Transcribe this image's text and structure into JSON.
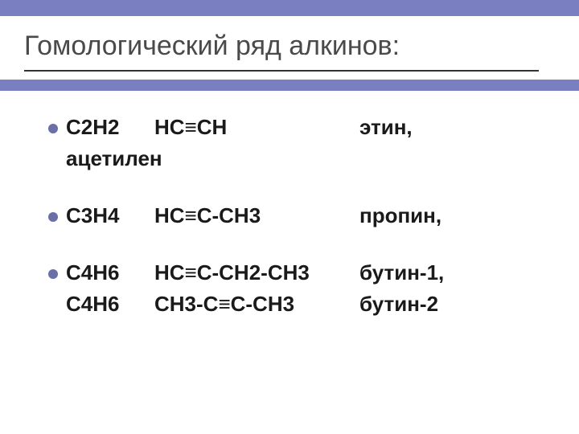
{
  "colors": {
    "header_band": "#7a7fc2",
    "title_text": "#4a4a4a",
    "bullet": "#6b6fa8",
    "body_text": "#1a1a1a",
    "underline": "#333333",
    "background": "#ffffff"
  },
  "title": "Гомологический ряд алкинов:",
  "rows": [
    {
      "formula": "С2Н2",
      "structure": "НС≡СН",
      "name": "этин,",
      "second_line": "ацетилен"
    },
    {
      "formula": "С3Н4",
      "structure": "НС≡С-СН3",
      "name": "пропин,"
    },
    {
      "formula": "С4Н6",
      "structure": "НС≡С-СН2-СН3",
      "name": "бутин-1,",
      "extra": {
        "formula": "С4Н6",
        "structure": "СН3-С≡С-СН3",
        "name": "бутин-2"
      }
    }
  ]
}
